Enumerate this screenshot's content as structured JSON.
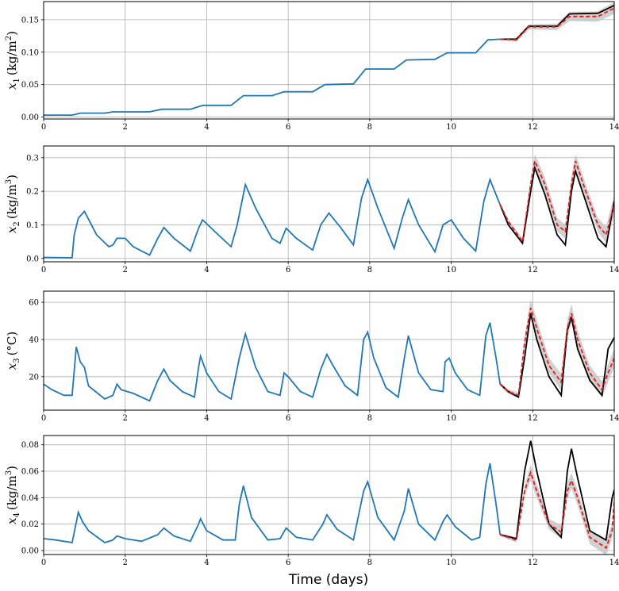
{
  "figure": {
    "xlabel": "Time (days)"
  },
  "colors": {
    "history": "#1f77b4",
    "truth": "#000000",
    "prediction": "#e41a1c",
    "band": "#c8c8c8",
    "grid": "#b0b0b0"
  },
  "chart_data": [
    {
      "type": "line",
      "ylabel_sym": "x",
      "ylabel_sub": "1",
      "ylabel_unit": "(kg/m",
      "ylabel_sup": "2",
      "ylabel_end": ")",
      "xlim": [
        0,
        14
      ],
      "ylim": [
        -0.003,
        0.178
      ],
      "xticks": [
        0,
        2,
        4,
        6,
        8,
        10,
        12,
        14
      ],
      "yticks": [
        0.0,
        0.05,
        0.1,
        0.15
      ],
      "yticklabels": [
        "0.00",
        "0.05",
        "0.10",
        "0.15"
      ],
      "history": [
        [
          0,
          0.003
        ],
        [
          0.7,
          0.003
        ],
        [
          0.9,
          0.006
        ],
        [
          1.5,
          0.006
        ],
        [
          1.7,
          0.008
        ],
        [
          2.6,
          0.008
        ],
        [
          2.9,
          0.012
        ],
        [
          3.6,
          0.012
        ],
        [
          3.9,
          0.018
        ],
        [
          4.6,
          0.018
        ],
        [
          4.9,
          0.033
        ],
        [
          5.6,
          0.033
        ],
        [
          5.9,
          0.039
        ],
        [
          6.6,
          0.039
        ],
        [
          6.9,
          0.05
        ],
        [
          7.6,
          0.051
        ],
        [
          7.9,
          0.074
        ],
        [
          8.6,
          0.074
        ],
        [
          8.9,
          0.088
        ],
        [
          9.6,
          0.089
        ],
        [
          9.9,
          0.099
        ],
        [
          10.6,
          0.099
        ],
        [
          10.9,
          0.119
        ],
        [
          11.2,
          0.12
        ]
      ],
      "truth": [
        [
          11.2,
          0.12
        ],
        [
          11.6,
          0.12
        ],
        [
          11.9,
          0.14
        ],
        [
          12.6,
          0.14
        ],
        [
          12.9,
          0.159
        ],
        [
          13.6,
          0.16
        ],
        [
          14,
          0.172
        ]
      ],
      "prediction": [
        [
          11.2,
          0.12
        ],
        [
          11.6,
          0.119
        ],
        [
          11.9,
          0.139
        ],
        [
          12.6,
          0.139
        ],
        [
          12.9,
          0.155
        ],
        [
          13.6,
          0.155
        ],
        [
          14,
          0.168
        ]
      ],
      "band_halfwidth": [
        [
          11.2,
          0.001
        ],
        [
          11.9,
          0.004
        ],
        [
          12.6,
          0.005
        ],
        [
          12.9,
          0.007
        ],
        [
          13.6,
          0.008
        ],
        [
          14,
          0.009
        ]
      ]
    },
    {
      "type": "line",
      "ylabel_sym": "x",
      "ylabel_sub": "2",
      "ylabel_unit": "(kg/m",
      "ylabel_sup": "3",
      "ylabel_end": ")",
      "xlim": [
        0,
        14
      ],
      "ylim": [
        -0.01,
        0.335
      ],
      "xticks": [
        0,
        2,
        4,
        6,
        8,
        10,
        12,
        14
      ],
      "yticks": [
        0.0,
        0.1,
        0.2,
        0.3
      ],
      "yticklabels": [
        "0.0",
        "0.1",
        "0.2",
        "0.3"
      ],
      "history": [
        [
          0,
          0.003
        ],
        [
          0.7,
          0.002
        ],
        [
          0.75,
          0.07
        ],
        [
          0.85,
          0.12
        ],
        [
          1.0,
          0.14
        ],
        [
          1.3,
          0.07
        ],
        [
          1.6,
          0.035
        ],
        [
          1.7,
          0.04
        ],
        [
          1.8,
          0.06
        ],
        [
          2.0,
          0.06
        ],
        [
          2.2,
          0.035
        ],
        [
          2.6,
          0.01
        ],
        [
          2.8,
          0.06
        ],
        [
          2.95,
          0.092
        ],
        [
          3.2,
          0.06
        ],
        [
          3.6,
          0.022
        ],
        [
          3.8,
          0.09
        ],
        [
          3.9,
          0.115
        ],
        [
          4.2,
          0.08
        ],
        [
          4.6,
          0.035
        ],
        [
          4.75,
          0.1
        ],
        [
          4.95,
          0.22
        ],
        [
          5.2,
          0.15
        ],
        [
          5.6,
          0.06
        ],
        [
          5.8,
          0.045
        ],
        [
          5.95,
          0.09
        ],
        [
          6.2,
          0.06
        ],
        [
          6.6,
          0.025
        ],
        [
          6.8,
          0.1
        ],
        [
          7.0,
          0.135
        ],
        [
          7.3,
          0.09
        ],
        [
          7.6,
          0.04
        ],
        [
          7.8,
          0.18
        ],
        [
          7.95,
          0.235
        ],
        [
          8.2,
          0.15
        ],
        [
          8.6,
          0.03
        ],
        [
          8.8,
          0.12
        ],
        [
          8.95,
          0.175
        ],
        [
          9.2,
          0.1
        ],
        [
          9.6,
          0.02
        ],
        [
          9.8,
          0.1
        ],
        [
          10.0,
          0.115
        ],
        [
          10.3,
          0.06
        ],
        [
          10.6,
          0.022
        ],
        [
          10.8,
          0.17
        ],
        [
          10.95,
          0.235
        ],
        [
          11.2,
          0.16
        ]
      ],
      "truth": [
        [
          11.2,
          0.16
        ],
        [
          11.4,
          0.1
        ],
        [
          11.75,
          0.045
        ],
        [
          11.95,
          0.2
        ],
        [
          12.05,
          0.27
        ],
        [
          12.3,
          0.19
        ],
        [
          12.6,
          0.07
        ],
        [
          12.8,
          0.04
        ],
        [
          12.95,
          0.2
        ],
        [
          13.05,
          0.26
        ],
        [
          13.3,
          0.17
        ],
        [
          13.6,
          0.06
        ],
        [
          13.8,
          0.035
        ],
        [
          14,
          0.17
        ]
      ],
      "prediction": [
        [
          11.2,
          0.16
        ],
        [
          11.4,
          0.11
        ],
        [
          11.75,
          0.05
        ],
        [
          11.95,
          0.22
        ],
        [
          12.05,
          0.29
        ],
        [
          12.3,
          0.22
        ],
        [
          12.6,
          0.1
        ],
        [
          12.8,
          0.08
        ],
        [
          12.95,
          0.22
        ],
        [
          13.05,
          0.29
        ],
        [
          13.3,
          0.2
        ],
        [
          13.6,
          0.1
        ],
        [
          13.8,
          0.07
        ],
        [
          14,
          0.16
        ]
      ],
      "band_halfwidth": [
        [
          11.2,
          0.005
        ],
        [
          11.75,
          0.01
        ],
        [
          12.05,
          0.022
        ],
        [
          12.6,
          0.02
        ],
        [
          13.05,
          0.022
        ],
        [
          13.6,
          0.02
        ],
        [
          14,
          0.03
        ]
      ]
    },
    {
      "type": "line",
      "ylabel_sym": "x",
      "ylabel_sub": "3",
      "ylabel_unit": "(°C)",
      "ylabel_sup": "",
      "ylabel_end": "",
      "xlim": [
        0,
        14
      ],
      "ylim": [
        2,
        66
      ],
      "xticks": [
        0,
        2,
        4,
        6,
        8,
        10,
        12,
        14
      ],
      "yticks": [
        20,
        40,
        60
      ],
      "yticklabels": [
        "20",
        "40",
        "60"
      ],
      "history": [
        [
          0,
          16
        ],
        [
          0.2,
          13
        ],
        [
          0.5,
          10
        ],
        [
          0.7,
          10
        ],
        [
          0.8,
          36
        ],
        [
          0.9,
          28
        ],
        [
          1.0,
          25
        ],
        [
          1.1,
          15
        ],
        [
          1.5,
          8
        ],
        [
          1.7,
          10
        ],
        [
          1.8,
          16
        ],
        [
          1.9,
          13
        ],
        [
          2.2,
          11
        ],
        [
          2.6,
          7
        ],
        [
          2.8,
          18
        ],
        [
          2.95,
          24
        ],
        [
          3.1,
          18
        ],
        [
          3.4,
          12
        ],
        [
          3.7,
          9
        ],
        [
          3.8,
          25
        ],
        [
          3.85,
          31
        ],
        [
          4.0,
          22
        ],
        [
          4.3,
          12
        ],
        [
          4.6,
          8
        ],
        [
          4.8,
          30
        ],
        [
          4.95,
          43
        ],
        [
          5.2,
          25
        ],
        [
          5.5,
          12
        ],
        [
          5.8,
          10
        ],
        [
          5.9,
          22
        ],
        [
          6.0,
          20
        ],
        [
          6.3,
          12
        ],
        [
          6.6,
          9
        ],
        [
          6.8,
          24
        ],
        [
          6.95,
          32
        ],
        [
          7.1,
          26
        ],
        [
          7.4,
          15
        ],
        [
          7.7,
          10
        ],
        [
          7.85,
          40
        ],
        [
          7.95,
          44
        ],
        [
          8.1,
          30
        ],
        [
          8.4,
          14
        ],
        [
          8.7,
          9
        ],
        [
          8.85,
          30
        ],
        [
          8.95,
          42
        ],
        [
          9.2,
          22
        ],
        [
          9.5,
          13
        ],
        [
          9.8,
          12
        ],
        [
          9.85,
          28
        ],
        [
          9.95,
          30
        ],
        [
          10.1,
          22
        ],
        [
          10.4,
          13
        ],
        [
          10.7,
          10
        ],
        [
          10.85,
          42
        ],
        [
          10.95,
          49
        ],
        [
          11.1,
          30
        ],
        [
          11.2,
          16
        ]
      ],
      "truth": [
        [
          11.2,
          16
        ],
        [
          11.4,
          12
        ],
        [
          11.65,
          9
        ],
        [
          11.8,
          30
        ],
        [
          11.95,
          54
        ],
        [
          12.1,
          40
        ],
        [
          12.4,
          20
        ],
        [
          12.7,
          10
        ],
        [
          12.85,
          45
        ],
        [
          12.95,
          52
        ],
        [
          13.1,
          35
        ],
        [
          13.4,
          18
        ],
        [
          13.7,
          10
        ],
        [
          13.85,
          35
        ],
        [
          14,
          41
        ]
      ],
      "prediction": [
        [
          11.2,
          16
        ],
        [
          11.4,
          12
        ],
        [
          11.65,
          10
        ],
        [
          11.8,
          38
        ],
        [
          11.95,
          57
        ],
        [
          12.1,
          46
        ],
        [
          12.4,
          26
        ],
        [
          12.7,
          17
        ],
        [
          12.85,
          46
        ],
        [
          12.95,
          54
        ],
        [
          13.1,
          40
        ],
        [
          13.4,
          22
        ],
        [
          13.7,
          13
        ],
        [
          13.85,
          22
        ],
        [
          14,
          30
        ]
      ],
      "band_halfwidth": [
        [
          11.2,
          1
        ],
        [
          11.65,
          1.5
        ],
        [
          11.95,
          5
        ],
        [
          12.4,
          4
        ],
        [
          12.95,
          5
        ],
        [
          13.4,
          4
        ],
        [
          14,
          5
        ]
      ]
    },
    {
      "type": "line",
      "ylabel_sym": "x",
      "ylabel_sub": "4",
      "ylabel_unit": "(kg/m",
      "ylabel_sup": "3",
      "ylabel_end": ")",
      "xlim": [
        0,
        14
      ],
      "ylim": [
        -0.003,
        0.087
      ],
      "xticks": [
        0,
        2,
        4,
        6,
        8,
        10,
        12,
        14
      ],
      "yticks": [
        0.0,
        0.02,
        0.04,
        0.06,
        0.08
      ],
      "yticklabels": [
        "0.00",
        "0.02",
        "0.04",
        "0.06",
        "0.08"
      ],
      "history": [
        [
          0,
          0.009
        ],
        [
          0.3,
          0.008
        ],
        [
          0.7,
          0.006
        ],
        [
          0.85,
          0.029
        ],
        [
          0.95,
          0.022
        ],
        [
          1.1,
          0.015
        ],
        [
          1.5,
          0.006
        ],
        [
          1.7,
          0.008
        ],
        [
          1.8,
          0.011
        ],
        [
          2.0,
          0.009
        ],
        [
          2.4,
          0.007
        ],
        [
          2.8,
          0.012
        ],
        [
          2.95,
          0.017
        ],
        [
          3.2,
          0.011
        ],
        [
          3.6,
          0.007
        ],
        [
          3.8,
          0.02
        ],
        [
          3.85,
          0.024
        ],
        [
          4.0,
          0.015
        ],
        [
          4.4,
          0.008
        ],
        [
          4.7,
          0.008
        ],
        [
          4.8,
          0.035
        ],
        [
          4.9,
          0.049
        ],
        [
          5.1,
          0.025
        ],
        [
          5.5,
          0.008
        ],
        [
          5.8,
          0.009
        ],
        [
          5.95,
          0.017
        ],
        [
          6.2,
          0.01
        ],
        [
          6.6,
          0.008
        ],
        [
          6.85,
          0.02
        ],
        [
          6.95,
          0.027
        ],
        [
          7.2,
          0.016
        ],
        [
          7.6,
          0.008
        ],
        [
          7.85,
          0.045
        ],
        [
          7.95,
          0.052
        ],
        [
          8.2,
          0.025
        ],
        [
          8.6,
          0.008
        ],
        [
          8.85,
          0.03
        ],
        [
          8.95,
          0.047
        ],
        [
          9.2,
          0.02
        ],
        [
          9.6,
          0.008
        ],
        [
          9.8,
          0.022
        ],
        [
          9.9,
          0.027
        ],
        [
          10.1,
          0.018
        ],
        [
          10.5,
          0.008
        ],
        [
          10.7,
          0.01
        ],
        [
          10.85,
          0.05
        ],
        [
          10.95,
          0.066
        ],
        [
          11.1,
          0.035
        ],
        [
          11.2,
          0.012
        ]
      ],
      "truth": [
        [
          11.2,
          0.012
        ],
        [
          11.6,
          0.009
        ],
        [
          11.8,
          0.06
        ],
        [
          11.95,
          0.083
        ],
        [
          12.1,
          0.06
        ],
        [
          12.4,
          0.02
        ],
        [
          12.7,
          0.01
        ],
        [
          12.85,
          0.06
        ],
        [
          12.95,
          0.077
        ],
        [
          13.1,
          0.055
        ],
        [
          13.4,
          0.015
        ],
        [
          13.8,
          0.008
        ],
        [
          13.95,
          0.04
        ],
        [
          14,
          0.046
        ]
      ],
      "prediction": [
        [
          11.2,
          0.012
        ],
        [
          11.6,
          0.008
        ],
        [
          11.8,
          0.045
        ],
        [
          11.95,
          0.059
        ],
        [
          12.1,
          0.045
        ],
        [
          12.4,
          0.02
        ],
        [
          12.7,
          0.014
        ],
        [
          12.85,
          0.045
        ],
        [
          12.95,
          0.053
        ],
        [
          13.1,
          0.04
        ],
        [
          13.4,
          0.01
        ],
        [
          13.8,
          0.002
        ],
        [
          13.95,
          0.015
        ],
        [
          14,
          0.037
        ]
      ],
      "band_halfwidth": [
        [
          11.2,
          0.001
        ],
        [
          11.6,
          0.002
        ],
        [
          11.95,
          0.006
        ],
        [
          12.4,
          0.004
        ],
        [
          12.95,
          0.006
        ],
        [
          13.4,
          0.005
        ],
        [
          14,
          0.006
        ]
      ]
    }
  ]
}
